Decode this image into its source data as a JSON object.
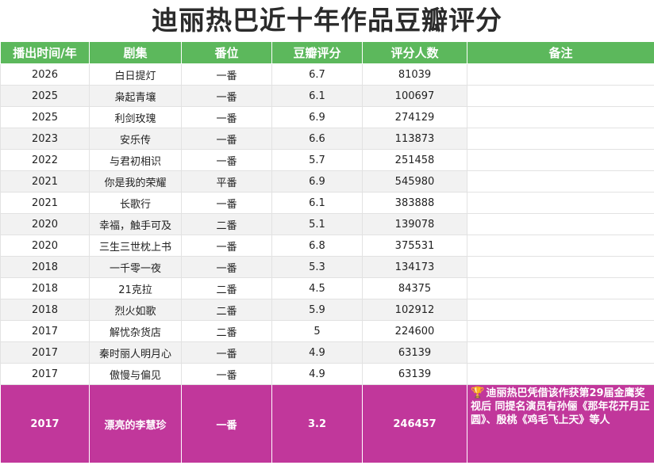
{
  "title": "迪丽热巴近十年作品豆瓣评分",
  "headers": [
    "播出时间/年",
    "剧集",
    "番位",
    "豆瓣评分",
    "评分人数",
    "备注"
  ],
  "rows": [
    {
      "year": "2026",
      "drama": "白日提灯",
      "billing": "一番",
      "score": "6.7",
      "raters": "81039",
      "note": ""
    },
    {
      "year": "2025",
      "drama": "枭起青壤",
      "billing": "一番",
      "score": "6.1",
      "raters": "100697",
      "note": ""
    },
    {
      "year": "2025",
      "drama": "利剑玫瑰",
      "billing": "一番",
      "score": "6.9",
      "raters": "274129",
      "note": ""
    },
    {
      "year": "2023",
      "drama": "安乐传",
      "billing": "一番",
      "score": "6.6",
      "raters": "113873",
      "note": ""
    },
    {
      "year": "2022",
      "drama": "与君初相识",
      "billing": "一番",
      "score": "5.7",
      "raters": "251458",
      "note": ""
    },
    {
      "year": "2021",
      "drama": "你是我的荣耀",
      "billing": "平番",
      "score": "6.9",
      "raters": "545980",
      "note": ""
    },
    {
      "year": "2021",
      "drama": "长歌行",
      "billing": "一番",
      "score": "6.1",
      "raters": "383888",
      "note": ""
    },
    {
      "year": "2020",
      "drama": "幸福，触手可及",
      "billing": "二番",
      "score": "5.1",
      "raters": "139078",
      "note": ""
    },
    {
      "year": "2020",
      "drama": "三生三世枕上书",
      "billing": "一番",
      "score": "6.8",
      "raters": "375531",
      "note": ""
    },
    {
      "year": "2018",
      "drama": "一千零一夜",
      "billing": "一番",
      "score": "5.3",
      "raters": "134173",
      "note": ""
    },
    {
      "year": "2018",
      "drama": "21克拉",
      "billing": "二番",
      "score": "4.5",
      "raters": "84375",
      "note": ""
    },
    {
      "year": "2018",
      "drama": "烈火如歌",
      "billing": "二番",
      "score": "5.9",
      "raters": "102912",
      "note": ""
    },
    {
      "year": "2017",
      "drama": "解忧杂货店",
      "billing": "二番",
      "score": "5",
      "raters": "224600",
      "note": ""
    },
    {
      "year": "2017",
      "drama": "秦时丽人明月心",
      "billing": "一番",
      "score": "4.9",
      "raters": "63139",
      "note": ""
    },
    {
      "year": "2017",
      "drama": "傲慢与偏见",
      "billing": "一番",
      "score": "4.9",
      "raters": "63139",
      "note": ""
    }
  ],
  "highlight": {
    "year": "2017",
    "drama": "漂亮的李慧珍",
    "billing": "一番",
    "score": "3.2",
    "raters": "246457",
    "note": "迪丽热巴凭借该作获第29届金鹰奖视后 同提名演员有孙俪《那年花开月正圆》、殷桃《鸡毛飞上天》等人",
    "note_icon": "trophy-icon"
  },
  "colors": {
    "header_bg": "#5cb85c",
    "highlight_bg": "#c1379b",
    "trophy": "#f0c419"
  }
}
